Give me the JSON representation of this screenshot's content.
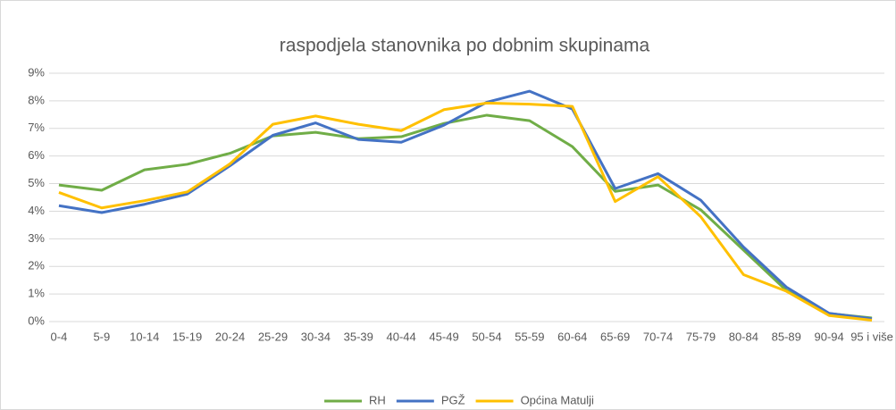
{
  "chart_data": {
    "type": "line",
    "title": "raspodjela stanovnika po dobnim skupinama",
    "categories": [
      "0-4",
      "5-9",
      "10-14",
      "15-19",
      "20-24",
      "25-29",
      "30-34",
      "35-39",
      "40-44",
      "45-49",
      "50-54",
      "55-59",
      "60-64",
      "65-69",
      "70-74",
      "75-79",
      "80-84",
      "85-89",
      "90-94",
      "95 i više"
    ],
    "series": [
      {
        "name": "RH",
        "color": "#70ad47",
        "values": [
          4.95,
          4.76,
          5.5,
          5.7,
          6.1,
          6.73,
          6.86,
          6.63,
          6.7,
          7.18,
          7.48,
          7.28,
          6.34,
          4.72,
          4.95,
          4.05,
          2.59,
          1.13,
          0.29,
          0.13
        ]
      },
      {
        "name": "PGŽ",
        "color": "#4472c4",
        "values": [
          4.2,
          3.95,
          4.25,
          4.62,
          5.65,
          6.75,
          7.2,
          6.6,
          6.5,
          7.12,
          7.95,
          8.35,
          7.7,
          4.82,
          5.36,
          4.4,
          2.7,
          1.25,
          0.3,
          0.1
        ]
      },
      {
        "name": "Općina Matulji",
        "color": "#ffc000",
        "values": [
          4.68,
          4.12,
          4.38,
          4.7,
          5.72,
          7.15,
          7.45,
          7.15,
          6.92,
          7.68,
          7.92,
          7.88,
          7.8,
          4.35,
          5.25,
          3.8,
          1.7,
          1.1,
          0.22,
          0.05
        ]
      }
    ],
    "ylim": [
      0,
      9
    ],
    "yticks": [
      {
        "value": 0,
        "label": "0%"
      },
      {
        "value": 1,
        "label": "1%"
      },
      {
        "value": 2,
        "label": "2%"
      },
      {
        "value": 3,
        "label": "3%"
      },
      {
        "value": 4,
        "label": "4%"
      },
      {
        "value": 5,
        "label": "5%"
      },
      {
        "value": 6,
        "label": "6%"
      },
      {
        "value": 7,
        "label": "7%"
      },
      {
        "value": 8,
        "label": "8%"
      },
      {
        "value": 9,
        "label": "9%"
      }
    ],
    "grid": true,
    "legend": "bottom"
  }
}
